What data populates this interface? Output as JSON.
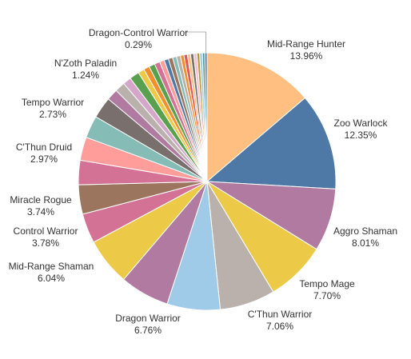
{
  "chart_data": {
    "type": "pie",
    "slices": [
      {
        "label": "Mid-Range Hunter",
        "pct_label": "13.96%",
        "value": 13.96,
        "color": "#ffbf80"
      },
      {
        "label": "Zoo Warlock",
        "pct_label": "12.35%",
        "value": 12.35,
        "color": "#4e79a7"
      },
      {
        "label": "Aggro Shaman",
        "pct_label": "8.01%",
        "value": 8.01,
        "color": "#b07aa1"
      },
      {
        "label": "Tempo Mage",
        "pct_label": "7.70%",
        "value": 7.7,
        "color": "#edc948"
      },
      {
        "label": "C'Thun Warrior",
        "pct_label": "7.06%",
        "value": 7.06,
        "color": "#bab0ac"
      },
      {
        "label": "Dragon Warrior",
        "pct_label": "6.76%",
        "value": 6.76,
        "color": "#a0cbe8"
      },
      {
        "label": "",
        "pct_label": "",
        "value": 6.3,
        "color": "#b07aa1"
      },
      {
        "label": "Mid-Range Shaman",
        "pct_label": "6.04%",
        "value": 6.04,
        "color": "#edc948"
      },
      {
        "label": "Control Warrior",
        "pct_label": "3.78%",
        "value": 3.78,
        "color": "#d37295"
      },
      {
        "label": "Miracle Rogue",
        "pct_label": "3.74%",
        "value": 3.74,
        "color": "#9c755f"
      },
      {
        "label": "",
        "pct_label": "",
        "value": 3.1,
        "color": "#d37295"
      },
      {
        "label": "C'Thun Druid",
        "pct_label": "2.97%",
        "value": 2.97,
        "color": "#ff9d9a"
      },
      {
        "label": "",
        "pct_label": "",
        "value": 2.85,
        "color": "#86bcb6"
      },
      {
        "label": "Tempo Warrior",
        "pct_label": "2.73%",
        "value": 2.73,
        "color": "#79706e"
      },
      {
        "label": "",
        "pct_label": "",
        "value": 1.45,
        "color": "#b07aa1"
      },
      {
        "label": "",
        "pct_label": "",
        "value": 1.3,
        "color": "#bab0ac"
      },
      {
        "label": "",
        "pct_label": "",
        "value": 1.05,
        "color": "#d4a6c8"
      },
      {
        "label": "N'Zoth Paladin",
        "pct_label": "1.24%",
        "value": 1.24,
        "color": "#59a14f"
      },
      {
        "label": "",
        "pct_label": "",
        "value": 0.8,
        "color": "#edc948"
      },
      {
        "label": "",
        "pct_label": "",
        "value": 0.75,
        "color": "#f28e2b"
      },
      {
        "label": "",
        "pct_label": "",
        "value": 0.75,
        "color": "#59a14f"
      },
      {
        "label": "",
        "pct_label": "",
        "value": 0.7,
        "color": "#d37295"
      },
      {
        "label": "",
        "pct_label": "",
        "value": 0.6,
        "color": "#ff9d9a"
      },
      {
        "label": "",
        "pct_label": "",
        "value": 0.55,
        "color": "#4e79a7"
      },
      {
        "label": "",
        "pct_label": "",
        "value": 0.55,
        "color": "#9c755f"
      },
      {
        "label": "",
        "pct_label": "",
        "value": 0.5,
        "color": "#86bcb6"
      },
      {
        "label": "",
        "pct_label": "",
        "value": 0.5,
        "color": "#bab0ac"
      },
      {
        "label": "",
        "pct_label": "",
        "value": 0.45,
        "color": "#f28e2b"
      },
      {
        "label": "",
        "pct_label": "",
        "value": 0.45,
        "color": "#e15759"
      },
      {
        "label": "",
        "pct_label": "",
        "value": 0.4,
        "color": "#ffbf80"
      },
      {
        "label": "",
        "pct_label": "",
        "value": 0.4,
        "color": "#79706e"
      },
      {
        "label": "",
        "pct_label": "",
        "value": 0.4,
        "color": "#fabfd2"
      },
      {
        "label": "",
        "pct_label": "",
        "value": 0.35,
        "color": "#b6992d"
      },
      {
        "label": "",
        "pct_label": "",
        "value": 0.35,
        "color": "#a0cbe8"
      },
      {
        "label": "",
        "pct_label": "",
        "value": 0.3,
        "color": "#499894"
      },
      {
        "label": "Dragon-Control Warrior",
        "pct_label": "0.29%",
        "value": 0.29,
        "color": "#4e79a7"
      }
    ]
  }
}
